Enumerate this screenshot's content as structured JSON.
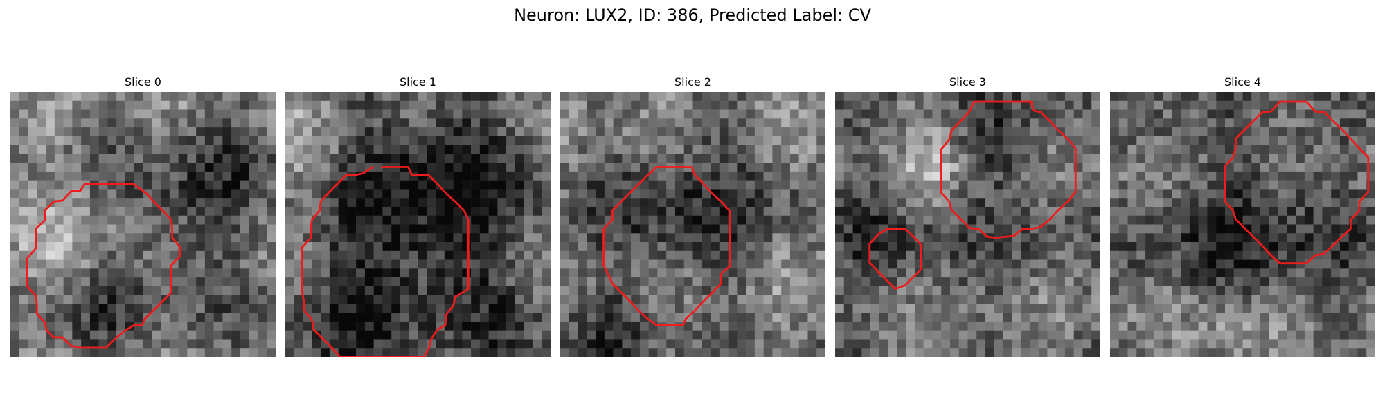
{
  "figure": {
    "title": "Neuron: LUX2, ID: 386, Predicted Label: CV",
    "contour_color": "#ee1c1c"
  },
  "panels": [
    {
      "title": "Slice 0",
      "seed": 11,
      "contour": [
        [
          8.4,
          10.4
        ],
        [
          13.9,
          10.4
        ],
        [
          15.4,
          11.5
        ],
        [
          16.2,
          12.4
        ],
        [
          17.2,
          13.4
        ],
        [
          18.2,
          14.5
        ],
        [
          18.3,
          15.5
        ],
        [
          18.3,
          16.5
        ],
        [
          19.2,
          17.6
        ],
        [
          19.2,
          18.6
        ],
        [
          18.2,
          19.6
        ],
        [
          18.2,
          20.6
        ],
        [
          18.2,
          21.7
        ],
        [
          18.2,
          22.7
        ],
        [
          17.2,
          23.7
        ],
        [
          16.2,
          24.7
        ],
        [
          15.2,
          25.7
        ],
        [
          14.9,
          26.4
        ],
        [
          14.0,
          26.4
        ],
        [
          13.0,
          27.0
        ],
        [
          11.9,
          27.9
        ],
        [
          10.9,
          28.9
        ],
        [
          9.9,
          28.9
        ],
        [
          8.9,
          28.9
        ],
        [
          7.9,
          28.9
        ],
        [
          6.9,
          28.8
        ],
        [
          5.9,
          27.8
        ],
        [
          4.9,
          27.8
        ],
        [
          4.1,
          27.0
        ],
        [
          3.9,
          26.1
        ],
        [
          3.0,
          25.1
        ],
        [
          3.0,
          24.1
        ],
        [
          2.9,
          23.1
        ],
        [
          1.9,
          22.0
        ],
        [
          1.9,
          20.9
        ],
        [
          1.9,
          19.8
        ],
        [
          1.9,
          18.8
        ],
        [
          2.9,
          17.7
        ],
        [
          2.9,
          16.6
        ],
        [
          2.9,
          15.5
        ],
        [
          3.9,
          14.5
        ],
        [
          3.9,
          13.4
        ],
        [
          4.9,
          12.4
        ],
        [
          5.9,
          12.3
        ],
        [
          6.9,
          11.2
        ],
        [
          7.9,
          11.2
        ]
      ]
    },
    {
      "title": "Slice 1",
      "seed": 23,
      "contour": [
        [
          10.9,
          8.5
        ],
        [
          13.9,
          8.5
        ],
        [
          14.3,
          9.4
        ],
        [
          16.2,
          9.4
        ],
        [
          17.2,
          10.4
        ],
        [
          18.2,
          11.5
        ],
        [
          19.2,
          12.4
        ],
        [
          20.2,
          13.4
        ],
        [
          20.7,
          14.5
        ],
        [
          20.7,
          22.3
        ],
        [
          19.2,
          23.2
        ],
        [
          19.0,
          24.2
        ],
        [
          18.2,
          25.2
        ],
        [
          18.1,
          26.4
        ],
        [
          17.2,
          26.9
        ],
        [
          16.5,
          28.0
        ],
        [
          16.2,
          29.1
        ],
        [
          15.7,
          30.0
        ],
        [
          6.2,
          30.0
        ],
        [
          5.4,
          29.1
        ],
        [
          4.3,
          28.0
        ],
        [
          3.2,
          26.9
        ],
        [
          3.0,
          25.8
        ],
        [
          2.1,
          24.7
        ],
        [
          2.1,
          23.7
        ],
        [
          1.9,
          22.7
        ],
        [
          1.9,
          17.6
        ],
        [
          2.9,
          16.5
        ],
        [
          2.9,
          15.5
        ],
        [
          3.0,
          14.5
        ],
        [
          3.9,
          13.4
        ],
        [
          4.0,
          12.4
        ],
        [
          4.9,
          11.4
        ],
        [
          5.9,
          10.4
        ],
        [
          6.9,
          9.4
        ],
        [
          7.9,
          9.4
        ],
        [
          8.8,
          9.2
        ],
        [
          9.9,
          8.5
        ]
      ]
    },
    {
      "title": "Slice 2",
      "seed": 37,
      "contour": [
        [
          10.9,
          8.5
        ],
        [
          14.9,
          8.5
        ],
        [
          15.2,
          9.4
        ],
        [
          16.2,
          10.4
        ],
        [
          17.2,
          11.5
        ],
        [
          18.2,
          12.4
        ],
        [
          19.2,
          13.5
        ],
        [
          19.2,
          19.7
        ],
        [
          18.2,
          20.6
        ],
        [
          18.2,
          21.7
        ],
        [
          17.2,
          22.7
        ],
        [
          16.2,
          23.7
        ],
        [
          15.2,
          24.8
        ],
        [
          14.2,
          25.7
        ],
        [
          13.9,
          26.4
        ],
        [
          10.9,
          26.4
        ],
        [
          9.9,
          25.7
        ],
        [
          8.9,
          24.8
        ],
        [
          7.9,
          23.7
        ],
        [
          6.9,
          22.7
        ],
        [
          5.9,
          21.7
        ],
        [
          5.4,
          20.6
        ],
        [
          4.9,
          19.6
        ],
        [
          4.9,
          18.6
        ],
        [
          4.9,
          17.6
        ],
        [
          4.9,
          16.5
        ],
        [
          4.9,
          15.5
        ],
        [
          5.9,
          14.5
        ],
        [
          5.9,
          13.4
        ],
        [
          6.9,
          12.4
        ],
        [
          7.9,
          11.4
        ],
        [
          8.9,
          10.4
        ],
        [
          9.9,
          9.4
        ]
      ]
    },
    {
      "title": "Slice 3",
      "seed": 51,
      "contour": [
        [
          15.7,
          1.1
        ],
        [
          22.2,
          1.1
        ],
        [
          22.4,
          2.1
        ],
        [
          23.3,
          2.3
        ],
        [
          24.3,
          3.3
        ],
        [
          25.2,
          4.3
        ],
        [
          26.3,
          5.3
        ],
        [
          27.2,
          6.4
        ],
        [
          27.2,
          11.3
        ],
        [
          26.3,
          12.4
        ],
        [
          25.2,
          13.4
        ],
        [
          24.2,
          14.5
        ],
        [
          23.2,
          15.3
        ],
        [
          22.2,
          15.5
        ],
        [
          21.2,
          15.5
        ],
        [
          20.2,
          16.3
        ],
        [
          19.2,
          16.4
        ],
        [
          18.2,
          16.5
        ],
        [
          17.2,
          16.4
        ],
        [
          16.2,
          15.5
        ],
        [
          15.2,
          15.4
        ],
        [
          14.2,
          14.4
        ],
        [
          13.2,
          13.4
        ],
        [
          12.9,
          12.4
        ],
        [
          12.0,
          11.4
        ],
        [
          12.0,
          6.5
        ],
        [
          12.9,
          5.4
        ],
        [
          13.2,
          4.3
        ],
        [
          14.2,
          3.3
        ],
        [
          15.2,
          2.2
        ]
      ]
    },
    {
      "title": "Slice 4",
      "seed": 67,
      "contour": [
        [
          19.2,
          1.1
        ],
        [
          22.2,
          1.1
        ],
        [
          23.2,
          2.2
        ],
        [
          24.3,
          2.3
        ],
        [
          25.2,
          3.3
        ],
        [
          26.3,
          4.3
        ],
        [
          27.2,
          5.3
        ],
        [
          28.2,
          6.4
        ],
        [
          29.2,
          7.4
        ],
        [
          29.2,
          11.3
        ],
        [
          28.2,
          12.4
        ],
        [
          28.2,
          13.4
        ],
        [
          27.2,
          14.5
        ],
        [
          27.2,
          15.5
        ],
        [
          26.2,
          16.4
        ],
        [
          25.2,
          17.4
        ],
        [
          24.2,
          18.3
        ],
        [
          23.2,
          18.5
        ],
        [
          22.2,
          19.4
        ],
        [
          19.2,
          19.4
        ],
        [
          18.2,
          18.5
        ],
        [
          17.2,
          17.4
        ],
        [
          16.2,
          16.4
        ],
        [
          15.2,
          15.4
        ],
        [
          14.2,
          14.4
        ],
        [
          13.9,
          13.4
        ],
        [
          13.0,
          12.4
        ],
        [
          13.0,
          8.4
        ],
        [
          13.9,
          7.4
        ],
        [
          14.2,
          6.4
        ],
        [
          14.2,
          5.3
        ],
        [
          15.2,
          4.3
        ],
        [
          16.2,
          3.3
        ],
        [
          17.2,
          2.3
        ],
        [
          18.2,
          2.2
        ]
      ]
    }
  ]
}
